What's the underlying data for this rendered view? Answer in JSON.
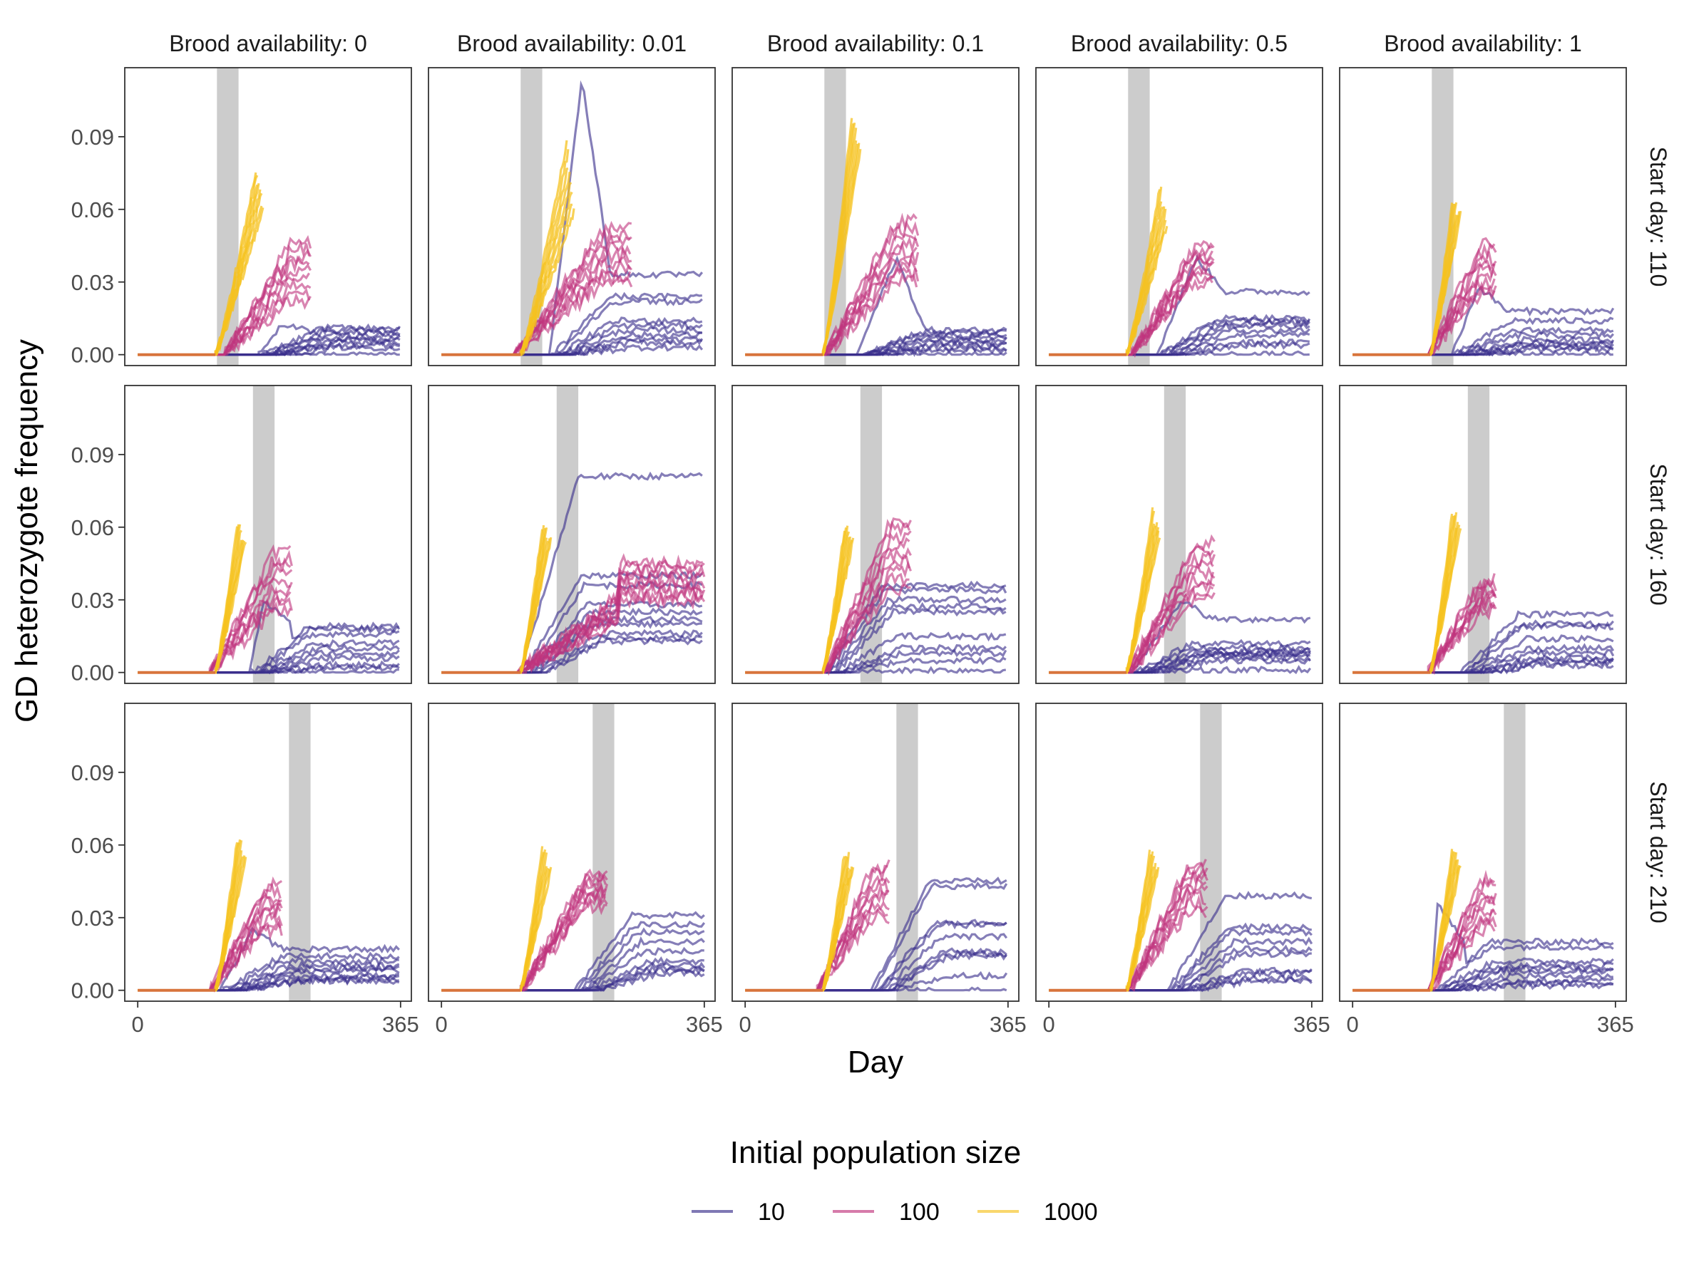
{
  "chart_data": {
    "type": "line",
    "facet_columns_label": "Brood availability",
    "facet_rows_label": "Start day",
    "columns": [
      "Brood availability: 0",
      "Brood availability: 0.01",
      "Brood availability: 0.1",
      "Brood availability: 0.5",
      "Brood availability: 1"
    ],
    "rows": [
      "Start day: 110",
      "Start day: 160",
      "Start day: 210"
    ],
    "row_start_days": [
      110,
      160,
      210
    ],
    "xlabel": "Day",
    "ylabel": "GD heterozygote frequency",
    "xlim": [
      -18,
      380
    ],
    "ylim": [
      -0.0045,
      0.1185
    ],
    "x_ticks": [
      0,
      365
    ],
    "x_tick_labels": [
      "0",
      "365"
    ],
    "y_ticks": [
      0,
      0.03,
      0.06,
      0.09
    ],
    "y_tick_labels": [
      "0.00",
      "0.03",
      "0.06",
      "0.09"
    ],
    "shaded_interval_width_days": 30,
    "legend": {
      "title": "Initial population size",
      "position": "bottom",
      "entries": [
        {
          "label": "10",
          "color": "#3a2f8c"
        },
        {
          "label": "100",
          "color": "#c0347d"
        },
        {
          "label": "1000",
          "color": "#f6c11e"
        }
      ]
    },
    "overlap_color": "#d8743c",
    "panels": [
      {
        "row": 0,
        "col": 0,
        "c1000": {
          "start": 108,
          "end": 175,
          "n": 8,
          "min": 0.062,
          "max": 0.077
        },
        "c100": {
          "start": 140,
          "end": 240,
          "n": 9,
          "min": 0.022,
          "max": 0.046
        },
        "c10": {
          "start": 168,
          "levels": [
            0.011,
            0.01,
            0.009,
            0.008,
            0.007,
            0.006,
            0.005,
            0.004,
            0.003,
            0.0
          ],
          "tail": 0.006,
          "peak_at": 200,
          "peak": 0.012
        }
      },
      {
        "row": 0,
        "col": 1,
        "c1000": {
          "start": 110,
          "end": 185,
          "n": 8,
          "min": 0.06,
          "max": 0.088
        },
        "c100": {
          "start": 120,
          "end": 265,
          "n": 9,
          "min": 0.03,
          "max": 0.052
        },
        "c10": {
          "start": 150,
          "levels": [
            0.033,
            0.024,
            0.022,
            0.014,
            0.012,
            0.01,
            0.008,
            0.006,
            0.005,
            0.003
          ],
          "tail": 0.004,
          "peak_at": 195,
          "peak": 0.114
        }
      },
      {
        "row": 0,
        "col": 2,
        "c1000": {
          "start": 108,
          "end": 160,
          "n": 8,
          "min": 0.085,
          "max": 0.102
        },
        "c100": {
          "start": 130,
          "end": 240,
          "n": 9,
          "min": 0.03,
          "max": 0.055
        },
        "c10": {
          "start": 155,
          "levels": [
            0.01,
            0.009,
            0.008,
            0.007,
            0.006,
            0.005,
            0.004,
            0.003,
            0.002,
            0.0
          ],
          "tail": 0.004,
          "peak_at": 210,
          "peak": 0.04
        }
      },
      {
        "row": 0,
        "col": 3,
        "c1000": {
          "start": 108,
          "end": 165,
          "n": 8,
          "min": 0.055,
          "max": 0.07
        },
        "c100": {
          "start": 135,
          "end": 230,
          "n": 9,
          "min": 0.03,
          "max": 0.045
        },
        "c10": {
          "start": 150,
          "levels": [
            0.026,
            0.015,
            0.014,
            0.013,
            0.012,
            0.01,
            0.008,
            0.005,
            0.004,
            0.0
          ],
          "tail": 0.004,
          "peak_at": 205,
          "peak": 0.04
        }
      },
      {
        "row": 0,
        "col": 4,
        "c1000": {
          "start": 108,
          "end": 150,
          "n": 8,
          "min": 0.058,
          "max": 0.065
        },
        "c100": {
          "start": 125,
          "end": 200,
          "n": 9,
          "min": 0.025,
          "max": 0.045
        },
        "c10": {
          "start": 138,
          "levels": [
            0.018,
            0.014,
            0.01,
            0.008,
            0.006,
            0.005,
            0.004,
            0.003,
            0.002,
            0.0
          ],
          "tail": 0.005,
          "peak_at": 175,
          "peak": 0.028
        }
      },
      {
        "row": 1,
        "col": 0,
        "c1000": {
          "start": 108,
          "end": 150,
          "n": 8,
          "min": 0.055,
          "max": 0.064
        },
        "c100": {
          "start": 120,
          "end": 215,
          "n": 9,
          "min": 0.025,
          "max": 0.05
        },
        "c10": {
          "start": 155,
          "levels": [
            0.019,
            0.018,
            0.016,
            0.012,
            0.01,
            0.008,
            0.006,
            0.003,
            0.002,
            0.0
          ],
          "tail": 0.005,
          "peak_at": 175,
          "peak": 0.03
        }
      },
      {
        "row": 1,
        "col": 1,
        "c1000": {
          "start": 110,
          "end": 152,
          "n": 8,
          "min": 0.055,
          "max": 0.063
        },
        "c100": {
          "start": 125,
          "end": 365,
          "n": 9,
          "min": 0.03,
          "max": 0.045
        },
        "c10": {
          "start": 110,
          "levels": [
            0.081,
            0.04,
            0.036,
            0.028,
            0.025,
            0.022,
            0.02,
            0.016,
            0.014,
            0.013
          ],
          "tail": 0.01,
          "peak_at": 190,
          "peak": 0.045
        }
      },
      {
        "row": 1,
        "col": 2,
        "c1000": {
          "start": 108,
          "end": 150,
          "n": 8,
          "min": 0.055,
          "max": 0.063
        },
        "c100": {
          "start": 130,
          "end": 230,
          "n": 9,
          "min": 0.035,
          "max": 0.063
        },
        "c10": {
          "start": 110,
          "levels": [
            0.036,
            0.034,
            0.03,
            0.027,
            0.025,
            0.015,
            0.01,
            0.008,
            0.005,
            0.001
          ],
          "tail": 0.008,
          "peak_at": 180,
          "peak": 0.035
        }
      },
      {
        "row": 1,
        "col": 3,
        "c1000": {
          "start": 108,
          "end": 155,
          "n": 8,
          "min": 0.058,
          "max": 0.068
        },
        "c100": {
          "start": 130,
          "end": 230,
          "n": 9,
          "min": 0.03,
          "max": 0.053
        },
        "c10": {
          "start": 115,
          "levels": [
            0.022,
            0.012,
            0.01,
            0.009,
            0.008,
            0.008,
            0.007,
            0.006,
            0.005,
            0.001
          ],
          "tail": 0.005,
          "peak_at": 185,
          "peak": 0.03
        }
      },
      {
        "row": 1,
        "col": 4,
        "c1000": {
          "start": 108,
          "end": 150,
          "n": 8,
          "min": 0.06,
          "max": 0.069
        },
        "c100": {
          "start": 125,
          "end": 200,
          "n": 9,
          "min": 0.025,
          "max": 0.038
        },
        "c10": {
          "start": 150,
          "levels": [
            0.024,
            0.02,
            0.019,
            0.014,
            0.01,
            0.008,
            0.006,
            0.005,
            0.004,
            0.003
          ],
          "tail": 0.006,
          "peak_at": 200,
          "peak": 0.022
        }
      },
      {
        "row": 2,
        "col": 0,
        "c1000": {
          "start": 108,
          "end": 150,
          "n": 8,
          "min": 0.055,
          "max": 0.066
        },
        "c100": {
          "start": 120,
          "end": 200,
          "n": 9,
          "min": 0.025,
          "max": 0.043
        },
        "c10": {
          "start": 115,
          "levels": [
            0.017,
            0.014,
            0.012,
            0.01,
            0.009,
            0.008,
            0.006,
            0.005,
            0.004,
            0.004
          ],
          "tail": 0.005,
          "peak_at": 160,
          "peak": 0.025
        }
      },
      {
        "row": 2,
        "col": 1,
        "c1000": {
          "start": 110,
          "end": 152,
          "n": 8,
          "min": 0.05,
          "max": 0.062
        },
        "c100": {
          "start": 130,
          "end": 230,
          "n": 9,
          "min": 0.035,
          "max": 0.048
        },
        "c10": {
          "start": 185,
          "levels": [
            0.031,
            0.027,
            0.024,
            0.02,
            0.016,
            0.012,
            0.01,
            0.009,
            0.008,
            0.007
          ],
          "tail": 0.005,
          "peak_at": 250,
          "peak": 0.022
        }
      },
      {
        "row": 2,
        "col": 2,
        "c1000": {
          "start": 108,
          "end": 150,
          "n": 8,
          "min": 0.05,
          "max": 0.06
        },
        "c100": {
          "start": 120,
          "end": 200,
          "n": 9,
          "min": 0.03,
          "max": 0.051
        },
        "c10": {
          "start": 175,
          "levels": [
            0.045,
            0.043,
            0.028,
            0.027,
            0.022,
            0.016,
            0.015,
            0.014,
            0.006,
            0.0
          ],
          "tail": 0.005,
          "peak_at": 255,
          "peak": 0.03
        }
      },
      {
        "row": 2,
        "col": 3,
        "c1000": {
          "start": 108,
          "end": 152,
          "n": 8,
          "min": 0.05,
          "max": 0.06
        },
        "c100": {
          "start": 130,
          "end": 220,
          "n": 9,
          "min": 0.033,
          "max": 0.053
        },
        "c10": {
          "start": 165,
          "levels": [
            0.039,
            0.026,
            0.024,
            0.02,
            0.017,
            0.015,
            0.008,
            0.007,
            0.005,
            0.004
          ],
          "tail": 0.005,
          "peak_at": 240,
          "peak": 0.025
        }
      },
      {
        "row": 2,
        "col": 4,
        "c1000": {
          "start": 108,
          "end": 150,
          "n": 8,
          "min": 0.052,
          "max": 0.061
        },
        "c100": {
          "start": 125,
          "end": 200,
          "n": 9,
          "min": 0.025,
          "max": 0.046
        },
        "c10": {
          "start": 110,
          "levels": [
            0.02,
            0.018,
            0.012,
            0.01,
            0.009,
            0.008,
            0.006,
            0.004,
            0.003,
            0.002
          ],
          "tail": 0.005,
          "peak_at": 118,
          "peak": 0.035
        }
      }
    ]
  }
}
